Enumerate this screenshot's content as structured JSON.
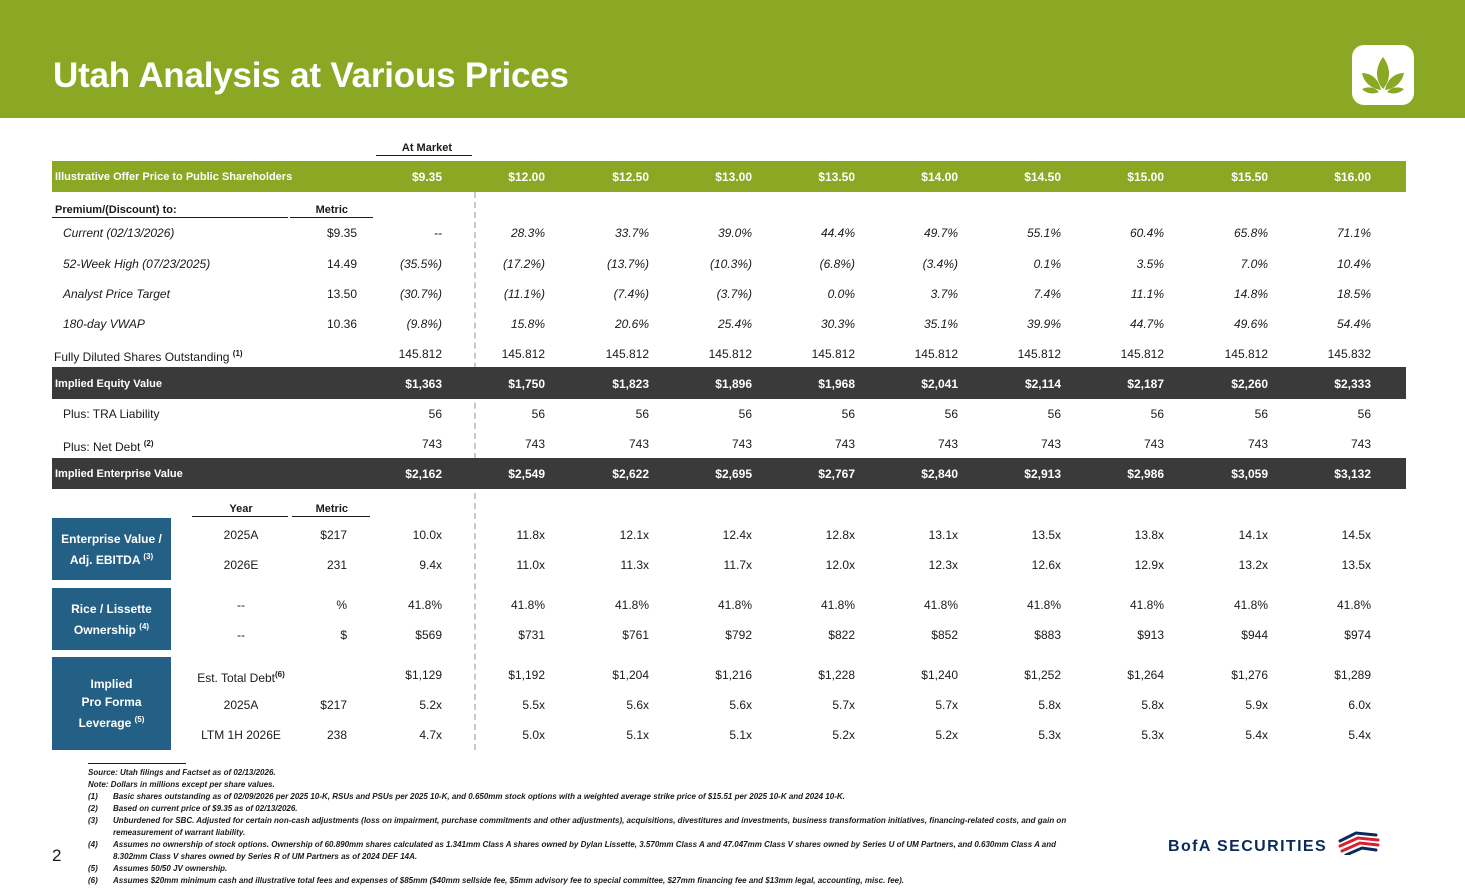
{
  "title": "Utah Analysis at Various Prices",
  "page_number": "2",
  "brand_text": "BofA SECURITIES",
  "colors": {
    "header_green": "#8aa823",
    "dark_band": "#3a3a3a",
    "side_blue": "#245f85"
  },
  "at_market_label": "At Market",
  "offer_row": {
    "label": "Illustrative Offer Price to Public Shareholders",
    "values": [
      "$9.35",
      "$12.00",
      "$12.50",
      "$13.00",
      "$13.50",
      "$14.00",
      "$14.50",
      "$15.00",
      "$15.50",
      "$16.00"
    ]
  },
  "premium_section": {
    "header_label": "Premium/(Discount) to:",
    "header_metric": "Metric",
    "rows": [
      {
        "label": "Current (02/13/2026)",
        "metric": "$9.35",
        "values": [
          "--",
          "28.3%",
          "33.7%",
          "39.0%",
          "44.4%",
          "49.7%",
          "55.1%",
          "60.4%",
          "65.8%",
          "71.1%"
        ]
      },
      {
        "label": "52-Week High (07/23/2025)",
        "metric": "14.49",
        "values": [
          "(35.5%)",
          "(17.2%)",
          "(13.7%)",
          "(10.3%)",
          "(6.8%)",
          "(3.4%)",
          "0.1%",
          "3.5%",
          "7.0%",
          "10.4%"
        ]
      },
      {
        "label": "Analyst Price Target",
        "metric": "13.50",
        "values": [
          "(30.7%)",
          "(11.1%)",
          "(7.4%)",
          "(3.7%)",
          "0.0%",
          "3.7%",
          "7.4%",
          "11.1%",
          "14.8%",
          "18.5%"
        ]
      },
      {
        "label": "180-day VWAP",
        "metric": "10.36",
        "values": [
          "(9.8%)",
          "15.8%",
          "20.6%",
          "25.4%",
          "30.3%",
          "35.1%",
          "39.9%",
          "44.7%",
          "49.6%",
          "54.4%"
        ]
      }
    ]
  },
  "fd_shares": {
    "label": "Fully Diluted Shares Outstanding",
    "sup": "(1)",
    "values": [
      "145.812",
      "145.812",
      "145.812",
      "145.812",
      "145.812",
      "145.812",
      "145.812",
      "145.812",
      "145.812",
      "145.832"
    ]
  },
  "equity_value": {
    "label": "Implied Equity Value",
    "values": [
      "$1,363",
      "$1,750",
      "$1,823",
      "$1,896",
      "$1,968",
      "$2,041",
      "$2,114",
      "$2,187",
      "$2,260",
      "$2,333"
    ]
  },
  "tra": {
    "label": "Plus: TRA Liability",
    "values": [
      "56",
      "56",
      "56",
      "56",
      "56",
      "56",
      "56",
      "56",
      "56",
      "56"
    ]
  },
  "net_debt": {
    "label": "Plus: Net Debt",
    "sup": "(2)",
    "values": [
      "743",
      "743",
      "743",
      "743",
      "743",
      "743",
      "743",
      "743",
      "743",
      "743"
    ]
  },
  "enterprise_value": {
    "label": "Implied Enterprise Value",
    "values": [
      "$2,162",
      "$2,549",
      "$2,622",
      "$2,695",
      "$2,767",
      "$2,840",
      "$2,913",
      "$2,986",
      "$3,059",
      "$3,132"
    ]
  },
  "multiples_header": {
    "year": "Year",
    "metric": "Metric"
  },
  "groups": [
    {
      "label_lines": [
        "Enterprise Value /",
        "Adj. EBITDA"
      ],
      "sup": "(3)",
      "rows": [
        {
          "year": "2025A",
          "metric": "$217",
          "values": [
            "10.0x",
            "11.8x",
            "12.1x",
            "12.4x",
            "12.8x",
            "13.1x",
            "13.5x",
            "13.8x",
            "14.1x",
            "14.5x"
          ]
        },
        {
          "year": "2026E",
          "metric": "231",
          "values": [
            "9.4x",
            "11.0x",
            "11.3x",
            "11.7x",
            "12.0x",
            "12.3x",
            "12.6x",
            "12.9x",
            "13.2x",
            "13.5x"
          ]
        }
      ]
    },
    {
      "label_lines": [
        "Rice / Lissette",
        "Ownership"
      ],
      "sup": "(4)",
      "rows": [
        {
          "year": "--",
          "metric": "%",
          "values": [
            "41.8%",
            "41.8%",
            "41.8%",
            "41.8%",
            "41.8%",
            "41.8%",
            "41.8%",
            "41.8%",
            "41.8%",
            "41.8%"
          ]
        },
        {
          "year": "--",
          "metric": "$",
          "values": [
            "$569",
            "$731",
            "$761",
            "$792",
            "$822",
            "$852",
            "$883",
            "$913",
            "$944",
            "$974"
          ]
        }
      ]
    },
    {
      "label_lines": [
        "Implied",
        "Pro Forma",
        "Leverage"
      ],
      "sup": "(5)",
      "rows": [
        {
          "year": "Est. Total Debt",
          "year_sup": "(6)",
          "metric": "",
          "values": [
            "$1,129",
            "$1,192",
            "$1,204",
            "$1,216",
            "$1,228",
            "$1,240",
            "$1,252",
            "$1,264",
            "$1,276",
            "$1,289"
          ]
        },
        {
          "year": "2025A",
          "metric": "$217",
          "values": [
            "5.2x",
            "5.5x",
            "5.6x",
            "5.6x",
            "5.7x",
            "5.7x",
            "5.8x",
            "5.8x",
            "5.9x",
            "6.0x"
          ]
        },
        {
          "year": "LTM 1H 2026E",
          "metric": "238",
          "values": [
            "4.7x",
            "5.0x",
            "5.1x",
            "5.1x",
            "5.2x",
            "5.2x",
            "5.3x",
            "5.3x",
            "5.4x",
            "5.4x"
          ]
        }
      ]
    }
  ],
  "footnotes": {
    "source": "Source: Utah filings and Factset as of 02/13/2026.",
    "note": "Note: Dollars in millions except per share values.",
    "items": [
      {
        "tag": "(1)",
        "text": "Basic shares outstanding as of 02/09/2026 per 2025 10-K, RSUs and PSUs per 2025 10-K, and 0.650mm stock options with a weighted average strike price of $15.51 per 2025 10-K and 2024 10-K."
      },
      {
        "tag": "(2)",
        "text": "Based on current price of $9.35 as of 02/13/2026."
      },
      {
        "tag": "(3)",
        "text": "Unburdened for SBC. Adjusted for certain non-cash adjustments (loss on impairment, purchase commitments and other adjustments), acquisitions, divestitures and investments, business transformation initiatives, financing-related costs, and gain on",
        "text2": "remeasurement of warrant liability."
      },
      {
        "tag": "(4)",
        "text": "Assumes no ownership of stock options. Ownership of 60.890mm shares calculated as 1.341mm Class A shares owned by Dylan Lissette, 3.570mm Class A and 47.047mm Class V shares owned by Series U of UM Partners, and 0.630mm Class A and",
        "text2": "8.302mm Class V shares owned by Series R of UM Partners as of 2024 DEF 14A."
      },
      {
        "tag": "(5)",
        "text": "Assumes 50/50 JV ownership."
      },
      {
        "tag": "(6)",
        "text": "Assumes $20mm minimum cash and illustrative total fees and expenses of $85mm ($40mm sellside fee, $5mm advisory fee to special committee, $27mm financing fee and $13mm legal, accounting, misc. fee)."
      }
    ]
  }
}
